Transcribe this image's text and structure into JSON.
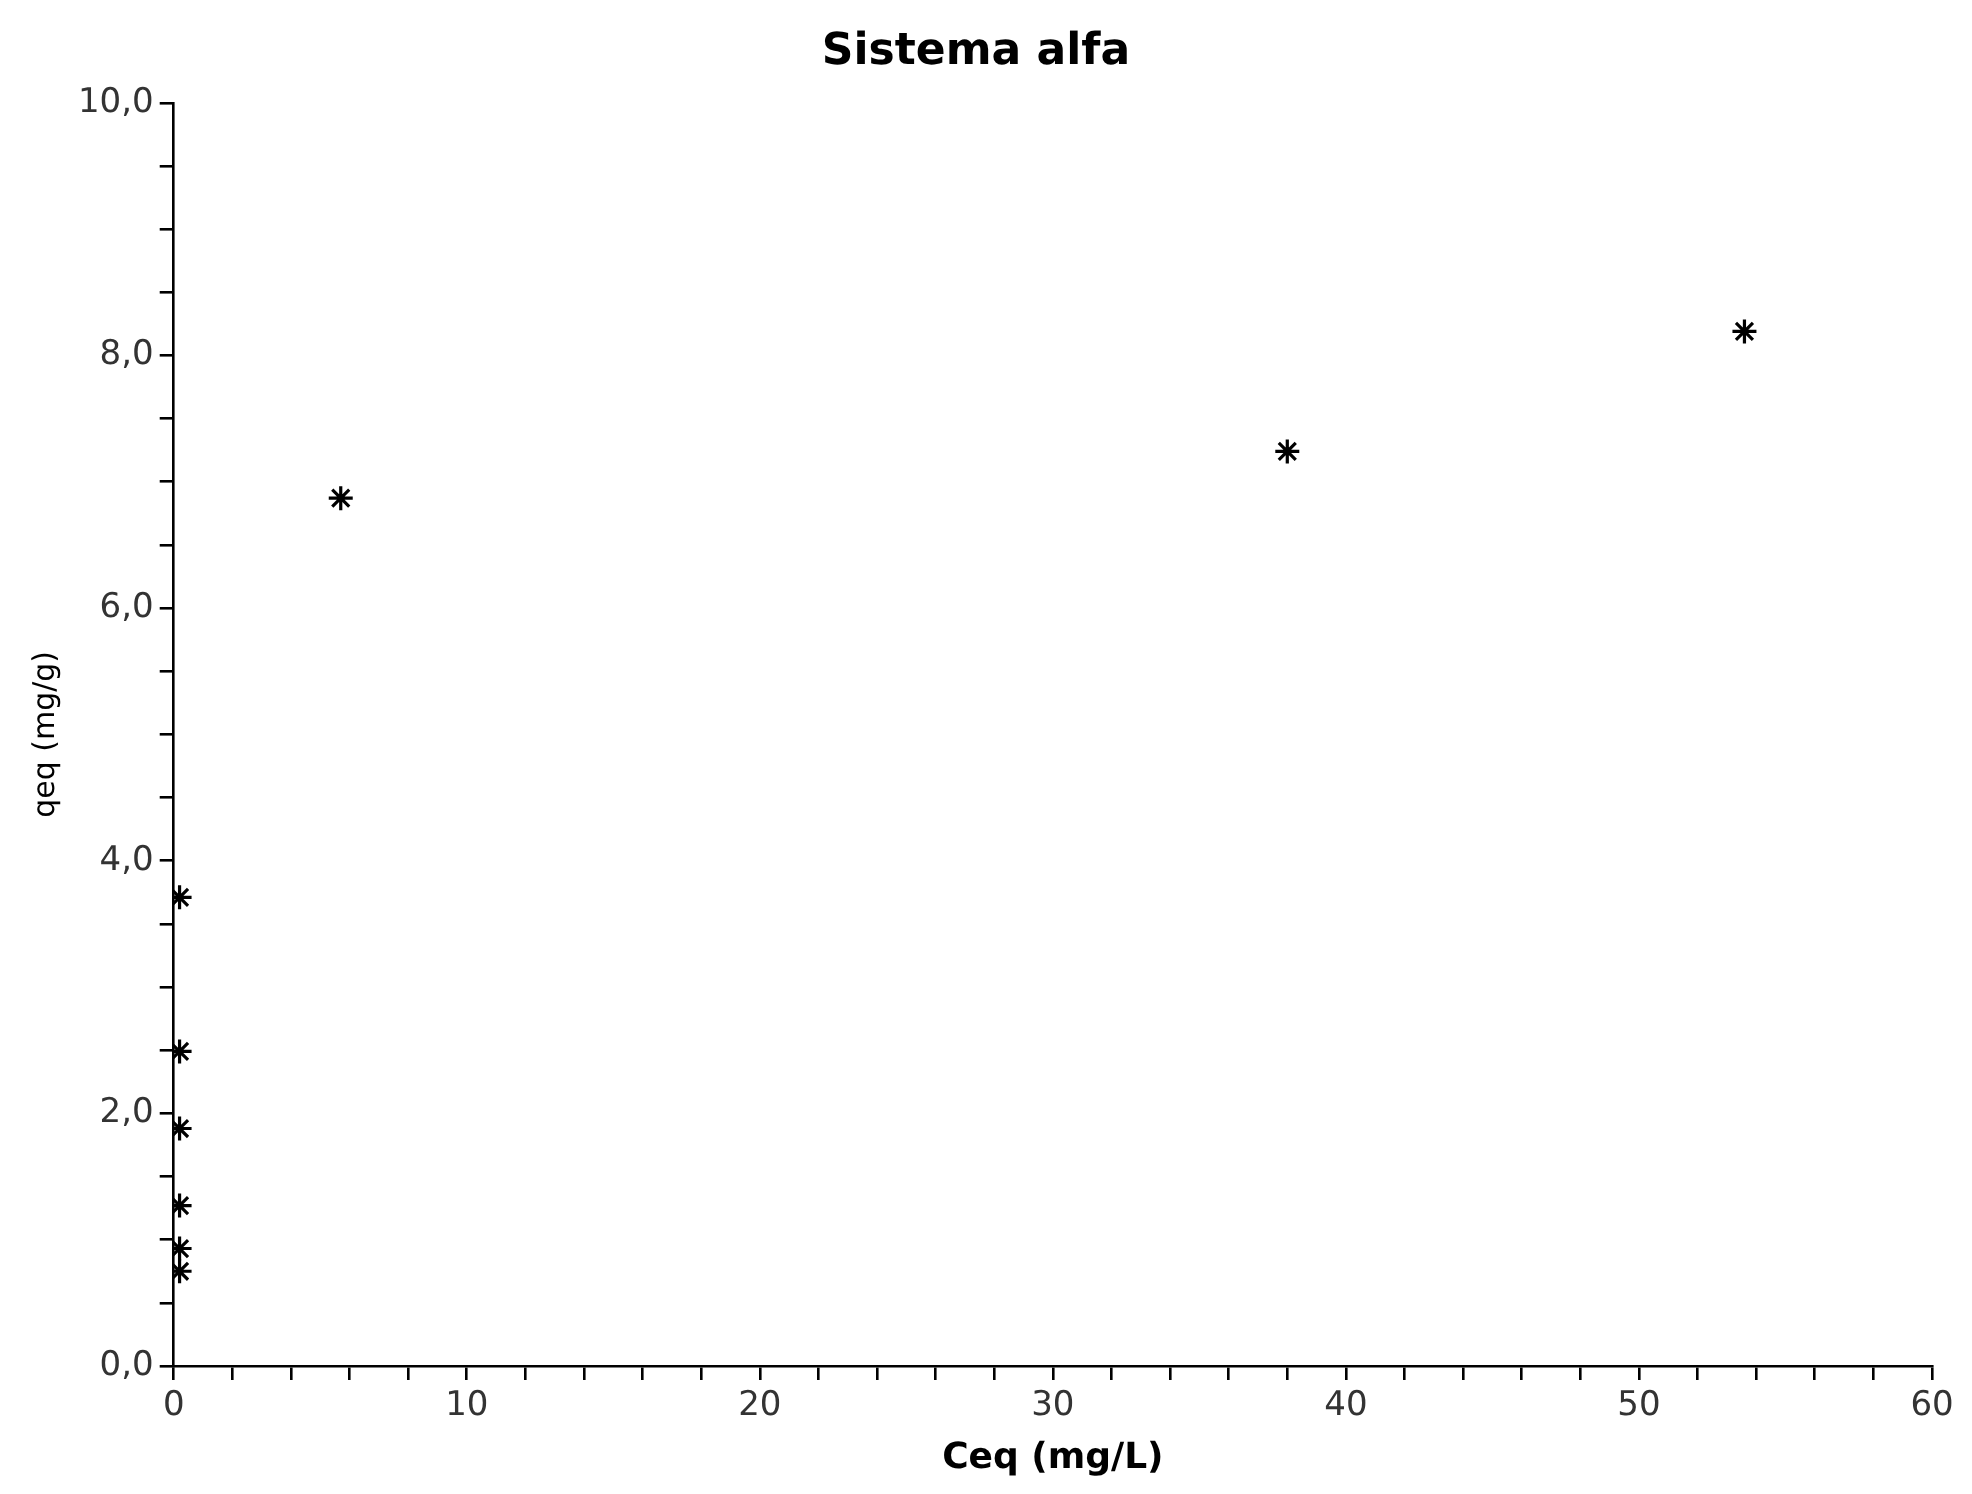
{
  "chart_data": {
    "type": "scatter",
    "title": "Sistema alfa",
    "xlabel": "Ceq (mg/L)",
    "ylabel": "qeq (mg/g)",
    "x": [
      0.2,
      0.2,
      0.2,
      0.2,
      0.2,
      0.2,
      5.7,
      38.0,
      53.6
    ],
    "values": [
      3.71,
      2.49,
      1.88,
      1.27,
      0.93,
      0.75,
      6.87,
      7.24,
      8.19
    ],
    "color": "#000000",
    "marker": "cross",
    "grid": false,
    "legend": false,
    "xlim": [
      0,
      60
    ],
    "ylim": [
      0,
      10
    ],
    "xticks": [
      0,
      {
        "value": 2,
        "label": null
      },
      {
        "value": 4,
        "label": null
      },
      {
        "value": 6,
        "label": null
      },
      {
        "value": 8,
        "label": null
      },
      10,
      {
        "value": 12,
        "label": null
      },
      {
        "value": 14,
        "label": null
      },
      {
        "value": 16,
        "label": null
      },
      {
        "value": 18,
        "label": null
      },
      20,
      {
        "value": 22,
        "label": null
      },
      {
        "value": 24,
        "label": null
      },
      {
        "value": 26,
        "label": null
      },
      {
        "value": 28,
        "label": null
      },
      30,
      {
        "value": 32,
        "label": null
      },
      {
        "value": 34,
        "label": null
      },
      {
        "value": 36,
        "label": null
      },
      {
        "value": 38,
        "label": null
      },
      40,
      {
        "value": 42,
        "label": null
      },
      {
        "value": 44,
        "label": null
      },
      {
        "value": 46,
        "label": null
      },
      {
        "value": 48,
        "label": null
      },
      50,
      {
        "value": 52,
        "label": null
      },
      {
        "value": 54,
        "label": null
      },
      {
        "value": 56,
        "label": null
      },
      {
        "value": 58,
        "label": null
      },
      60
    ],
    "yticks": [
      {
        "value": 0,
        "label": "0,0"
      },
      {
        "value": 0.5,
        "label": null
      },
      {
        "value": 1,
        "label": null
      },
      {
        "value": 1.5,
        "label": null
      },
      {
        "value": 2,
        "label": "2,0"
      },
      {
        "value": 2.5,
        "label": null
      },
      {
        "value": 3,
        "label": null
      },
      {
        "value": 3.5,
        "label": null
      },
      {
        "value": 4,
        "label": "4,0"
      },
      {
        "value": 4.5,
        "label": null
      },
      {
        "value": 5,
        "label": null
      },
      {
        "value": 5.5,
        "label": null
      },
      {
        "value": 6,
        "label": "6,0"
      },
      {
        "value": 6.5,
        "label": null
      },
      {
        "value": 7,
        "label": null
      },
      {
        "value": 7.5,
        "label": null
      },
      {
        "value": 8,
        "label": "8,0"
      },
      {
        "value": 8.5,
        "label": null
      },
      {
        "value": 9,
        "label": null
      },
      {
        "value": 9.5,
        "label": null
      },
      {
        "value": 10,
        "label": "10,0"
      }
    ]
  }
}
